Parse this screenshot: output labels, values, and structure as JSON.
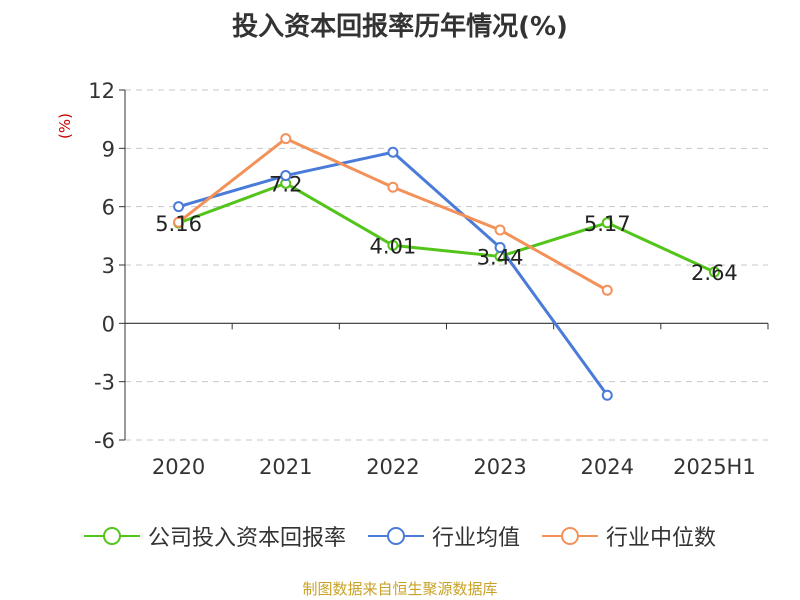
{
  "chart_data": {
    "type": "line",
    "title": "投入资本回报率历年情况(%)",
    "ylabel": "(%)",
    "categories": [
      "2020",
      "2021",
      "2022",
      "2023",
      "2024",
      "2025H1"
    ],
    "ylim": [
      -6,
      12
    ],
    "yticks": [
      12,
      9,
      6,
      3,
      0,
      -3,
      -6
    ],
    "grid": true,
    "legend_position": "bottom",
    "series": [
      {
        "name": "公司投入资本回报率",
        "color": "#52c41a",
        "values": [
          5.16,
          7.2,
          4.01,
          3.44,
          5.17,
          2.64
        ],
        "labels": [
          "5.16",
          "7.2",
          "4.01",
          "3.44",
          "5.17",
          "2.64"
        ]
      },
      {
        "name": "行业均值",
        "color": "#4a7bd9",
        "values": [
          6.0,
          7.6,
          8.8,
          3.9,
          -3.7,
          null
        ]
      },
      {
        "name": "行业中位数",
        "color": "#f39159",
        "values": [
          5.2,
          9.5,
          7.0,
          4.8,
          1.7,
          null
        ]
      }
    ]
  },
  "source": "制图数据来自恒生聚源数据库"
}
